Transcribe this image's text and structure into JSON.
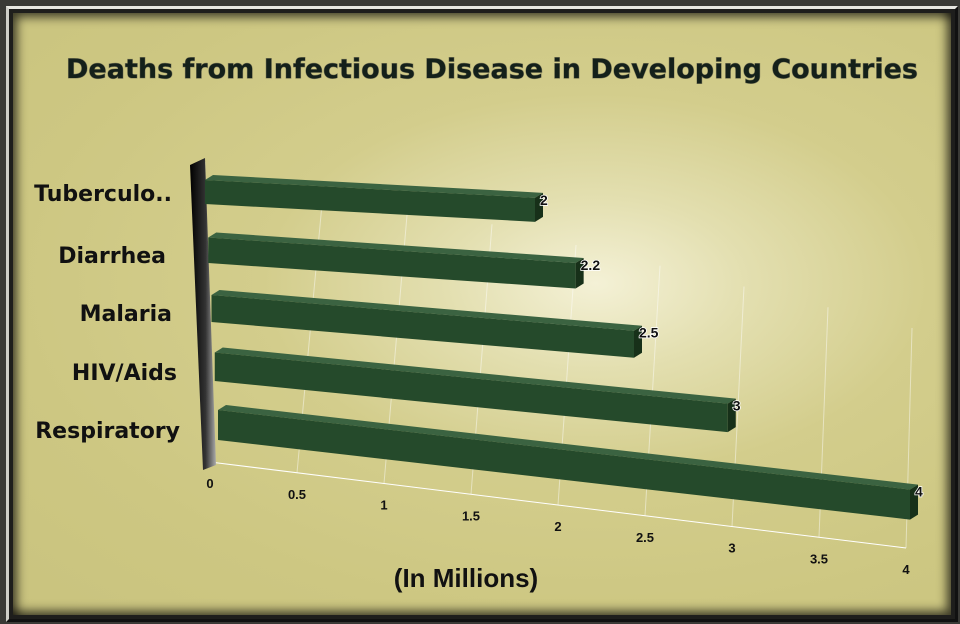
{
  "chart_data": {
    "type": "bar",
    "orientation": "horizontal",
    "title": "Deaths from Infectious Disease in Developing Countries",
    "categories": [
      "Tuberculo..",
      "Diarrhea",
      "Malaria",
      "HIV/Aids",
      "Respiratory"
    ],
    "values": [
      2,
      2.2,
      2.5,
      3,
      4
    ],
    "value_labels": [
      "2",
      "2.2",
      "2.5",
      "3",
      "4"
    ],
    "xlabel": "(In Millions)",
    "ylabel": "",
    "xlim": [
      0,
      4
    ],
    "xticks": [
      "0",
      "0.5",
      "1",
      "1.5",
      "2",
      "2.5",
      "3",
      "3.5",
      "4"
    ],
    "grid": true,
    "bar_color": "#254a2b",
    "background_color": "#cdc782"
  }
}
